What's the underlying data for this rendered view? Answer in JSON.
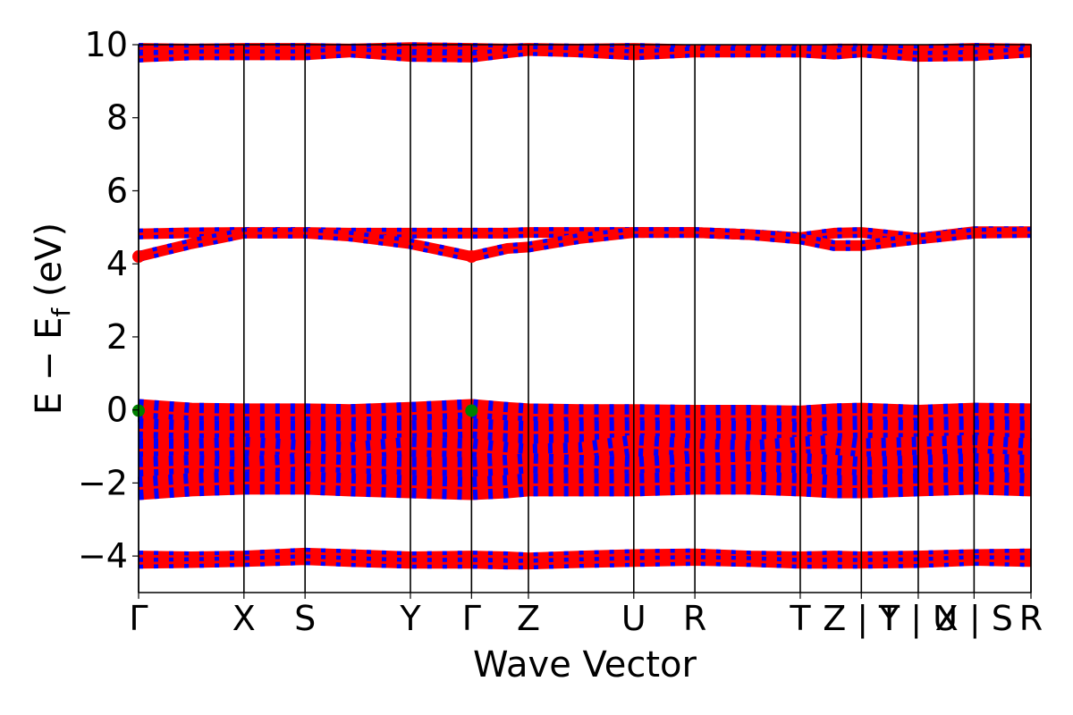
{
  "chart_data": {
    "type": "line",
    "title": "",
    "xlabel": "Wave Vector",
    "ylabel": "E − E",
    "ylabel_subscript": "f",
    "ylabel_unit": " (eV)",
    "ylim": [
      -5,
      10
    ],
    "xlim": [
      0,
      8.47
    ],
    "yticks": [
      -4,
      -2,
      0,
      2,
      4,
      6,
      8,
      10
    ],
    "ytick_labels": [
      "−4",
      "−2",
      "0",
      "2",
      "4",
      "6",
      "8",
      "10"
    ],
    "kpath": [
      {
        "label": "Γ",
        "x": 0.0
      },
      {
        "label": "X",
        "x": 1.0
      },
      {
        "label": "S",
        "x": 1.58
      },
      {
        "label": "Y",
        "x": 2.58
      },
      {
        "label": "Γ",
        "x": 3.16
      },
      {
        "label": "Z",
        "x": 3.7
      },
      {
        "label": "U",
        "x": 4.7
      },
      {
        "label": "R",
        "x": 5.28
      },
      {
        "label": "T",
        "x": 6.28
      },
      {
        "label": "Z | Y",
        "x": 6.86
      },
      {
        "label": "T | U",
        "x": 7.4
      },
      {
        "label": "X | S",
        "x": 7.93
      },
      {
        "label": "R",
        "x": 8.47
      }
    ],
    "series_colors": {
      "spin_up": "#ff0000",
      "spin_down": "#0000ff"
    },
    "marker_colors": {
      "cbm": "#ff0000",
      "vbm": "#008000"
    },
    "series": [
      {
        "x": [
          0,
          0.5,
          1.0,
          1.58,
          2.0,
          2.58,
          3.16,
          3.5,
          3.7,
          4.2,
          4.7,
          5.28,
          5.8,
          6.28,
          6.6,
          6.86,
          7.4,
          7.93,
          8.47
        ],
        "values": [
          9.9,
          9.88,
          9.9,
          9.9,
          9.88,
          9.92,
          9.9,
          9.88,
          9.9,
          9.88,
          9.9,
          9.86,
          9.86,
          9.84,
          9.88,
          9.88,
          9.86,
          9.9,
          9.88
        ]
      },
      {
        "x": [
          0,
          0.5,
          1.0,
          1.58,
          2.0,
          2.58,
          3.16,
          3.5,
          3.7,
          4.2,
          4.7,
          5.28,
          5.8,
          6.28,
          6.6,
          6.86,
          7.4,
          7.93,
          8.47
        ],
        "values": [
          9.66,
          9.72,
          9.72,
          9.72,
          9.8,
          9.68,
          9.66,
          9.78,
          9.84,
          9.8,
          9.72,
          9.8,
          9.8,
          9.8,
          9.74,
          9.8,
          9.68,
          9.7,
          9.8
        ]
      },
      {
        "x": [
          0,
          0.5,
          1.0,
          1.58,
          2.0,
          2.58,
          3.16,
          3.5,
          3.7,
          4.2,
          4.7,
          5.28,
          5.8,
          6.28,
          6.6,
          6.86,
          7.4,
          7.93,
          8.47
        ],
        "values": [
          4.82,
          4.85,
          4.86,
          4.86,
          4.84,
          4.84,
          4.84,
          4.84,
          4.86,
          4.86,
          4.86,
          4.86,
          4.8,
          4.72,
          4.84,
          4.86,
          4.7,
          4.88,
          4.88
        ]
      },
      {
        "x": [
          0,
          0.5,
          1.0,
          1.58,
          2.0,
          2.58,
          3.16,
          3.5,
          3.7,
          4.2,
          4.7,
          5.28,
          5.8,
          6.28,
          6.6,
          6.86,
          7.4,
          7.93,
          8.47
        ],
        "values": [
          4.2,
          4.55,
          4.84,
          4.84,
          4.76,
          4.55,
          4.2,
          4.42,
          4.46,
          4.7,
          4.86,
          4.86,
          4.8,
          4.68,
          4.5,
          4.5,
          4.68,
          4.84,
          4.86
        ]
      },
      {
        "x": [
          0,
          0.5,
          1.0,
          1.58,
          2.0,
          2.58,
          3.16,
          3.5,
          3.7,
          4.2,
          4.7,
          5.28,
          5.8,
          6.28,
          6.6,
          6.86,
          7.4,
          7.93,
          8.47
        ],
        "values": [
          -0.02,
          -0.12,
          -0.14,
          -0.14,
          -0.16,
          -0.1,
          -0.02,
          -0.1,
          -0.14,
          -0.16,
          -0.16,
          -0.18,
          -0.18,
          -0.2,
          -0.14,
          -0.12,
          -0.18,
          -0.12,
          -0.14
        ]
      },
      {
        "x": [
          0,
          0.5,
          1.0,
          1.58,
          2.0,
          2.58,
          3.16,
          3.5,
          3.7,
          4.2,
          4.7,
          5.28,
          5.8,
          6.28,
          6.6,
          6.86,
          7.4,
          7.93,
          8.47
        ],
        "values": [
          -0.55,
          -0.6,
          -0.6,
          -0.6,
          -0.62,
          -0.6,
          -0.55,
          -0.6,
          -0.62,
          -0.62,
          -0.6,
          -0.6,
          -0.62,
          -0.65,
          -0.6,
          -0.58,
          -0.6,
          -0.58,
          -0.6
        ]
      },
      {
        "x": [
          0,
          0.5,
          1.0,
          1.58,
          2.0,
          2.58,
          3.16,
          3.5,
          3.7,
          4.2,
          4.7,
          5.28,
          5.8,
          6.28,
          6.6,
          6.86,
          7.4,
          7.93,
          8.47
        ],
        "values": [
          -1.1,
          -1.1,
          -1.05,
          -1.15,
          -1.2,
          -1.05,
          -1.1,
          -1.2,
          -1.25,
          -1.2,
          -1.0,
          -1.1,
          -1.15,
          -1.05,
          -1.0,
          -1.1,
          -1.05,
          -1.0,
          -1.1
        ]
      },
      {
        "x": [
          0,
          0.5,
          1.0,
          1.58,
          2.0,
          2.58,
          3.16,
          3.5,
          3.7,
          4.2,
          4.7,
          5.28,
          5.8,
          6.28,
          6.6,
          6.86,
          7.4,
          7.93,
          8.47
        ],
        "values": [
          -1.6,
          -1.55,
          -1.6,
          -1.5,
          -1.55,
          -1.6,
          -1.6,
          -1.55,
          -1.5,
          -1.55,
          -1.6,
          -1.5,
          -1.45,
          -1.5,
          -1.55,
          -1.6,
          -1.55,
          -1.5,
          -1.55
        ]
      },
      {
        "x": [
          0,
          0.5,
          1.0,
          1.58,
          2.0,
          2.58,
          3.16,
          3.5,
          3.7,
          4.2,
          4.7,
          5.28,
          5.8,
          6.28,
          6.6,
          6.86,
          7.4,
          7.93,
          8.47
        ],
        "values": [
          -2.15,
          -2.05,
          -2.0,
          -2.0,
          -2.05,
          -2.1,
          -2.15,
          -2.1,
          -2.05,
          -2.05,
          -2.05,
          -2.0,
          -2.0,
          -2.05,
          -2.1,
          -2.1,
          -2.05,
          -2.0,
          -2.05
        ]
      },
      {
        "x": [
          0,
          0.5,
          1.0,
          1.58,
          2.0,
          2.58,
          3.16,
          3.5,
          3.7,
          4.2,
          4.7,
          5.28,
          5.8,
          6.28,
          6.6,
          6.86,
          7.4,
          7.93,
          8.47
        ],
        "values": [
          -4.0,
          -4.02,
          -4.0,
          -3.92,
          -3.96,
          -4.02,
          -4.0,
          -4.02,
          -4.05,
          -4.0,
          -3.96,
          -3.94,
          -4.0,
          -4.02,
          -4.0,
          -4.02,
          -4.0,
          -3.96,
          -3.94
        ]
      },
      {
        "x": [
          0,
          0.5,
          1.0,
          1.58,
          2.0,
          2.58,
          3.16,
          3.5,
          3.7,
          4.2,
          4.7,
          5.28,
          5.8,
          6.28,
          6.6,
          6.86,
          7.4,
          7.93,
          8.47
        ],
        "values": [
          -4.2,
          -4.18,
          -4.15,
          -4.1,
          -4.15,
          -4.2,
          -4.2,
          -4.22,
          -4.22,
          -4.18,
          -4.15,
          -4.12,
          -4.15,
          -4.2,
          -4.2,
          -4.2,
          -4.18,
          -4.12,
          -4.15
        ]
      }
    ],
    "extrema": [
      {
        "kind": "cbm",
        "x": 0.0,
        "y": 4.2
      },
      {
        "kind": "cbm",
        "x": 3.16,
        "y": 4.2
      },
      {
        "kind": "vbm",
        "x": 0.0,
        "y": -0.02
      },
      {
        "kind": "vbm",
        "x": 3.16,
        "y": -0.02
      }
    ],
    "grid": false,
    "legend": "none"
  }
}
